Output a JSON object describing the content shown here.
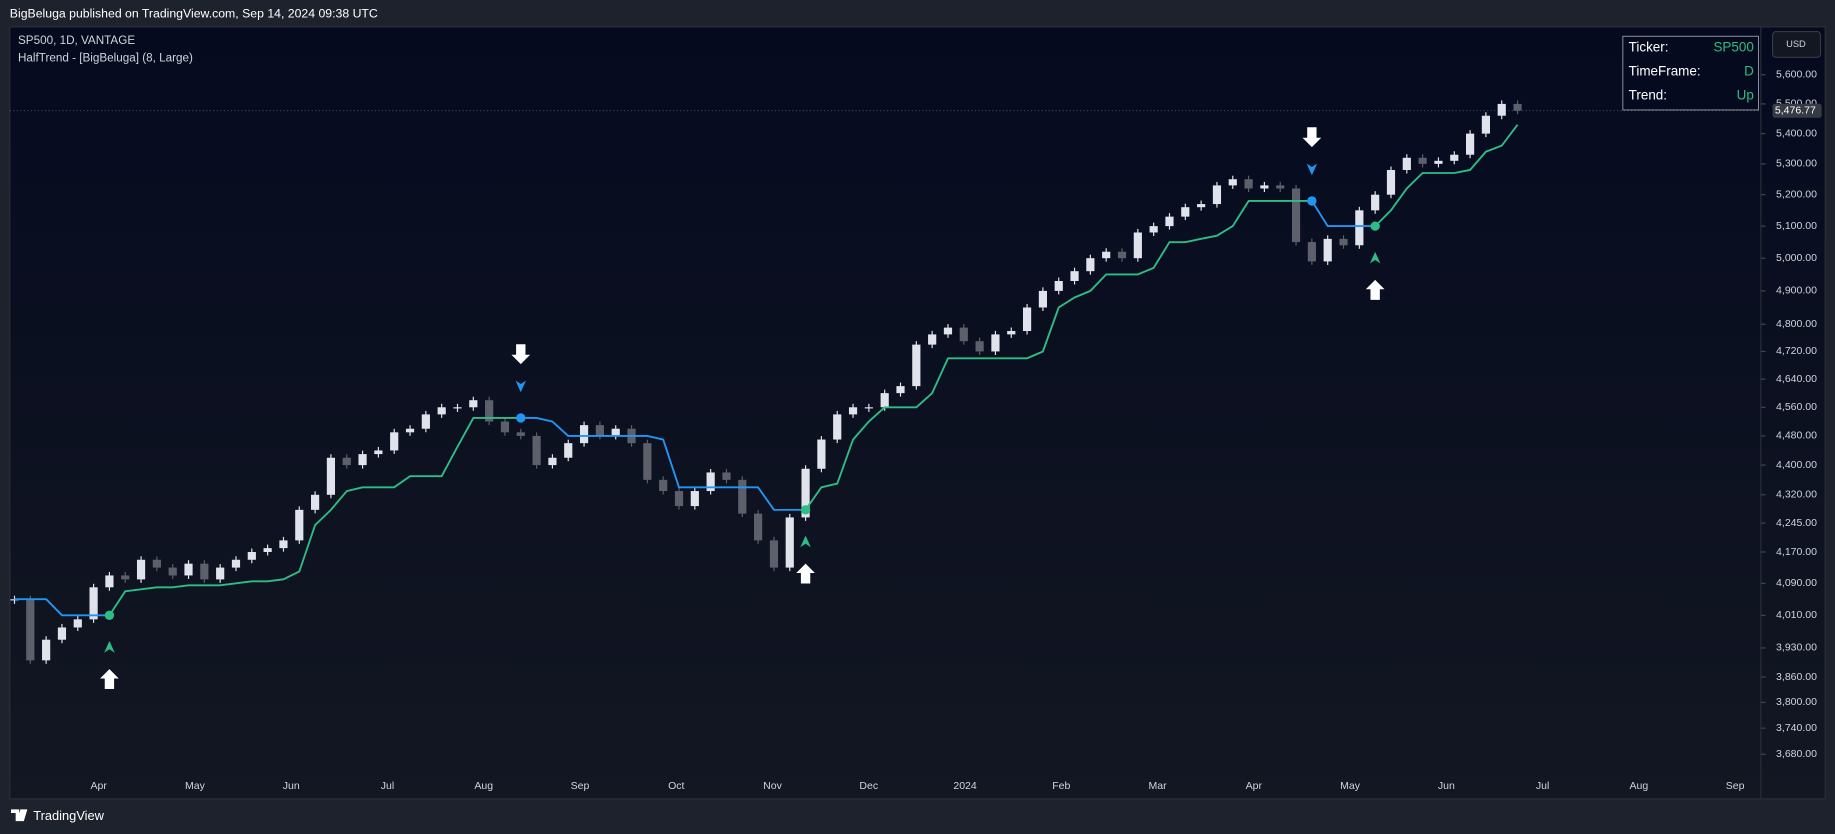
{
  "header": {
    "text": "BigBeluga published on TradingView.com, Sep 14, 2024 09:38 UTC"
  },
  "footer": {
    "brand": "TradingView"
  },
  "chart_data": {
    "type": "candlestick",
    "symbol_legend": "SP500, 1D, VANTAGE",
    "indicator_legend": "HalfTrend - [BigBeluga] (8, Large)",
    "currency": "USD",
    "log_scale": true,
    "ylim": [
      3580,
      5768
    ],
    "yticks": [
      {
        "value": 5600,
        "label": "5,600.00"
      },
      {
        "value": 5500,
        "label": "5,500.00"
      },
      {
        "value": 5400,
        "label": "5,400.00"
      },
      {
        "value": 5300,
        "label": "5,300.00"
      },
      {
        "value": 5200,
        "label": "5,200.00"
      },
      {
        "value": 5100,
        "label": "5,100.00"
      },
      {
        "value": 5000,
        "label": "5,000.00"
      },
      {
        "value": 4900,
        "label": "4,900.00"
      },
      {
        "value": 4800,
        "label": "4,800.00"
      },
      {
        "value": 4720,
        "label": "4,720.00"
      },
      {
        "value": 4640,
        "label": "4,640.00"
      },
      {
        "value": 4560,
        "label": "4,560.00"
      },
      {
        "value": 4480,
        "label": "4,480.00"
      },
      {
        "value": 4400,
        "label": "4,400.00"
      },
      {
        "value": 4320,
        "label": "4,320.00"
      },
      {
        "value": 4245,
        "label": "4,245.00"
      },
      {
        "value": 4170,
        "label": "4,170.00"
      },
      {
        "value": 4090,
        "label": "4,090.00"
      },
      {
        "value": 4010,
        "label": "4,010.00"
      },
      {
        "value": 3930,
        "label": "3,930.00"
      },
      {
        "value": 3860,
        "label": "3,860.00"
      },
      {
        "value": 3800,
        "label": "3,800.00"
      },
      {
        "value": 3740,
        "label": "3,740.00"
      },
      {
        "value": 3680,
        "label": "3,680.00"
      }
    ],
    "xaxis_labels": [
      "Apr",
      "May",
      "Jun",
      "Jul",
      "Aug",
      "Sep",
      "Oct",
      "Nov",
      "Dec",
      "2024",
      "Feb",
      "Mar",
      "Apr",
      "May",
      "Jun",
      "Jul",
      "Aug",
      "Sep"
    ],
    "last_price": {
      "value": 5476.77,
      "label": "5,476.77"
    },
    "up_color": "#e0e3eb",
    "down_color": "#5d606b",
    "values": [
      4050,
      3900,
      3950,
      3980,
      4000,
      4080,
      4110,
      4100,
      4150,
      4130,
      4110,
      4140,
      4100,
      4130,
      4150,
      4170,
      4180,
      4200,
      4280,
      4320,
      4420,
      4400,
      4430,
      4440,
      4490,
      4500,
      4540,
      4560,
      4560,
      4580,
      4520,
      4490,
      4480,
      4400,
      4420,
      4460,
      4510,
      4480,
      4500,
      4460,
      4360,
      4330,
      4290,
      4330,
      4380,
      4360,
      4270,
      4200,
      4130,
      4260,
      4390,
      4470,
      4540,
      4560,
      4560,
      4600,
      4620,
      4740,
      4770,
      4790,
      4750,
      4720,
      4770,
      4780,
      4850,
      4900,
      4930,
      4960,
      5000,
      5020,
      5000,
      5080,
      5100,
      5130,
      5160,
      5170,
      5230,
      5250,
      5220,
      5230,
      5220,
      5050,
      4990,
      5060,
      5040,
      5150,
      5200,
      5280,
      5320,
      5300,
      5310,
      5330,
      5400,
      5460,
      5500,
      5477
    ],
    "trend_lines": [
      {
        "color": "#2ebd85",
        "values": [
          null,
          null,
          null,
          null,
          null,
          null,
          4010,
          4070,
          4075,
          4080,
          4080,
          4085,
          4085,
          4085,
          4090,
          4095,
          4095,
          4100,
          4120,
          4240,
          4280,
          4330,
          4340,
          4340,
          4340,
          4370,
          4370,
          4370,
          4450,
          4530,
          4530,
          4530,
          4530,
          null,
          null,
          null,
          null,
          null,
          null,
          null,
          null,
          null,
          null,
          null,
          null,
          null,
          null,
          null,
          null,
          null,
          4280,
          4340,
          4350,
          4470,
          4520,
          4560,
          4560,
          4560,
          4600,
          4700,
          4700,
          4700,
          4700,
          4700,
          4700,
          4720,
          4850,
          4880,
          4900,
          4950,
          4950,
          4950,
          4970,
          5050,
          5050,
          5060,
          5070,
          5100,
          5180,
          5180,
          5180,
          5180,
          5180,
          null,
          null,
          null,
          5100,
          5150,
          5220,
          5270,
          5270,
          5270,
          5280,
          5340,
          5360,
          5430
        ]
      },
      {
        "color": "#2196f3",
        "values": [
          4050,
          4050,
          4050,
          4010,
          4010,
          4010,
          4010,
          null,
          null,
          null,
          null,
          null,
          null,
          null,
          null,
          null,
          null,
          null,
          null,
          null,
          null,
          null,
          null,
          null,
          null,
          null,
          null,
          null,
          null,
          null,
          null,
          null,
          4530,
          4530,
          4520,
          4480,
          4480,
          4480,
          4480,
          4480,
          4480,
          4470,
          4340,
          4340,
          4340,
          4340,
          4340,
          4340,
          4280,
          4280,
          4280,
          null,
          null,
          null,
          null,
          null,
          null,
          null,
          null,
          null,
          null,
          null,
          null,
          null,
          null,
          null,
          null,
          null,
          null,
          null,
          null,
          null,
          null,
          null,
          null,
          null,
          null,
          null,
          null,
          null,
          null,
          null,
          5180,
          5100,
          5100,
          5100,
          5100,
          null,
          null,
          null,
          null,
          null,
          null,
          null,
          null,
          null
        ]
      }
    ],
    "signals": [
      {
        "index": 6,
        "type": "buy"
      },
      {
        "index": 32,
        "type": "sell"
      },
      {
        "index": 50,
        "type": "buy"
      },
      {
        "index": 82,
        "type": "sell"
      },
      {
        "index": 86,
        "type": "buy"
      }
    ],
    "info_table": {
      "value_color": "#2ebd85",
      "rows": [
        [
          "Ticker:",
          "SP500"
        ],
        [
          "TimeFrame:",
          "D"
        ],
        [
          "Trend:",
          "Up"
        ]
      ]
    }
  }
}
